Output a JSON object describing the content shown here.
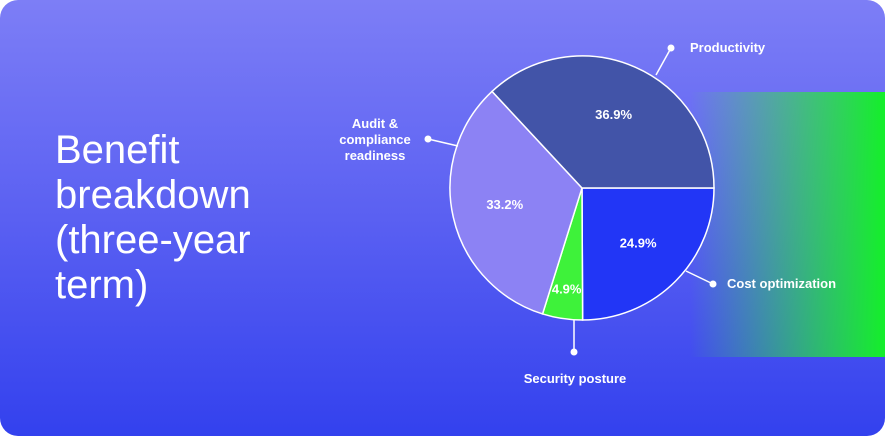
{
  "chart_data": {
    "type": "pie",
    "title": "Benefit breakdown (three-year term)",
    "categories": [
      "Cost optimization",
      "Security posture",
      "Audit & compliance readiness",
      "Productivity"
    ],
    "values": [
      24.9,
      4.9,
      33.2,
      36.9
    ],
    "value_labels": [
      "24.9%",
      "4.9%",
      "33.2%",
      "36.9%"
    ],
    "colors": [
      "#2236f6",
      "#3ef23a",
      "#8c82f4",
      "#4254a8"
    ]
  }
}
